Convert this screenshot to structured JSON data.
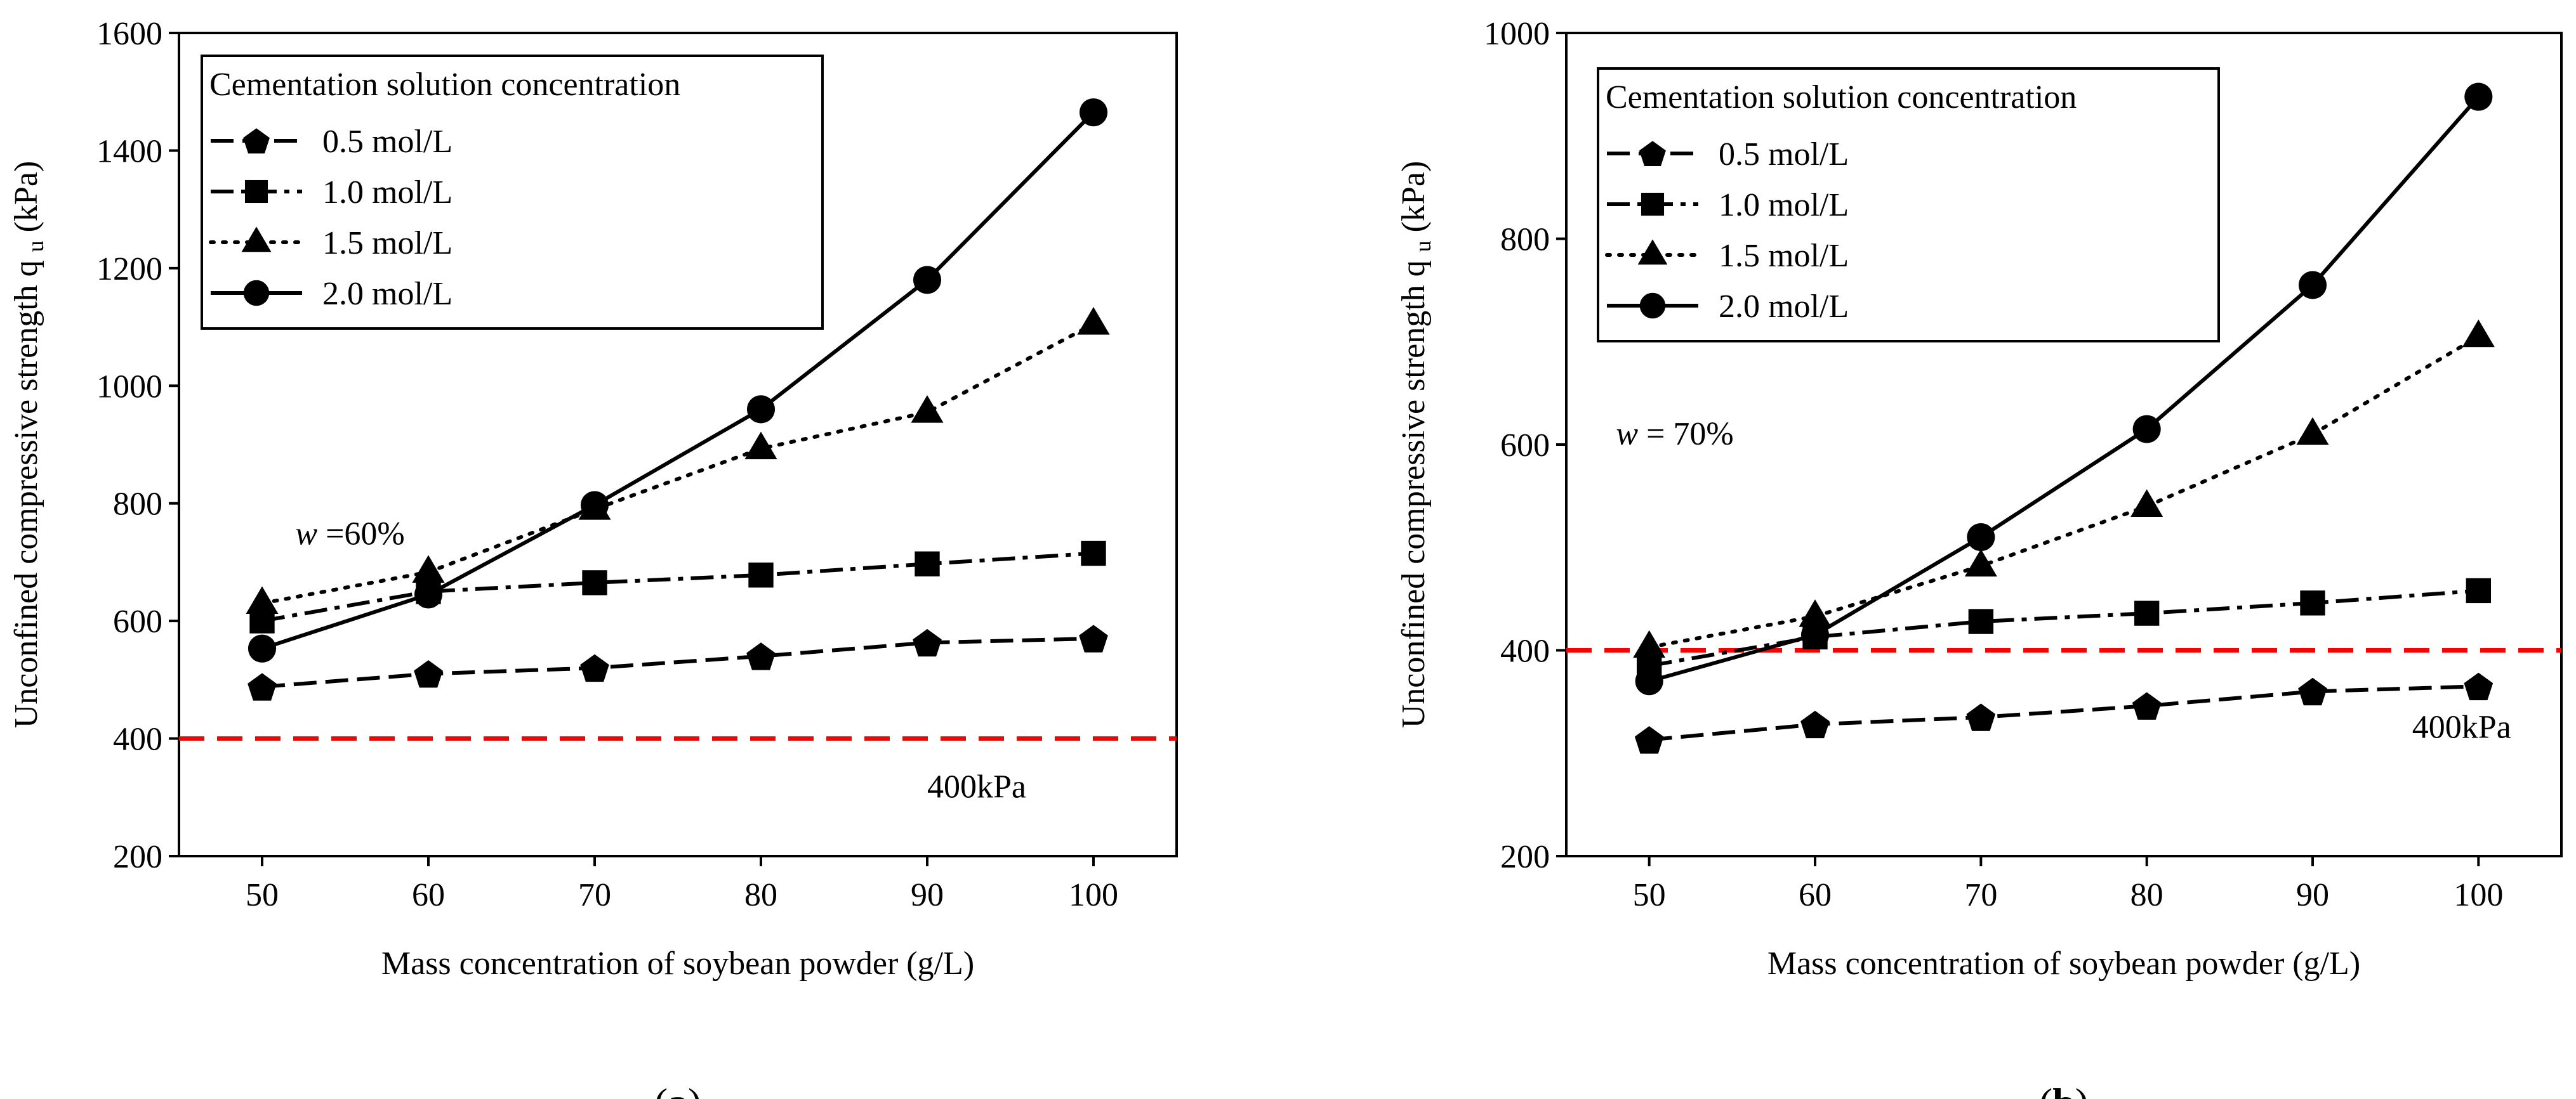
{
  "chart_data": [
    {
      "type": "line",
      "panel_label": "a",
      "xlabel": "Mass concentration of soybean powder (g/L)",
      "ylabel": "Unconfined compressive strength q",
      "ylabel_subscript": "u",
      "ylabel_unit": "(kPa)",
      "xlim": [
        45,
        105
      ],
      "ylim": [
        200,
        1600
      ],
      "xticks": [
        50,
        60,
        70,
        80,
        90,
        100
      ],
      "yticks": [
        200,
        400,
        600,
        800,
        1000,
        1200,
        1400,
        1600
      ],
      "x": [
        50,
        60,
        70,
        80,
        90,
        100
      ],
      "legend_title": "Cementation solution concentration",
      "legend_position": "top-left",
      "annotation": {
        "var": "w",
        "text": " =60%",
        "x": 52,
        "y": 730
      },
      "reference_line": {
        "y": 400,
        "label": "400kPa",
        "color": "#ff0000",
        "label_x": 90,
        "label_y": 300
      },
      "series": [
        {
          "name": "0.5 mol/L",
          "marker": "pentagon",
          "dash": "dash",
          "values": [
            488,
            510,
            520,
            540,
            563,
            570
          ]
        },
        {
          "name": "1.0 mol/L",
          "marker": "square",
          "dash": "dashdot",
          "values": [
            600,
            650,
            665,
            678,
            697,
            715
          ]
        },
        {
          "name": "1.5 mol/L",
          "marker": "triangle",
          "dash": "dot",
          "values": [
            630,
            683,
            790,
            893,
            955,
            1105
          ]
        },
        {
          "name": "2.0 mol/L",
          "marker": "circle",
          "dash": "solid",
          "values": [
            553,
            645,
            797,
            960,
            1180,
            1465
          ]
        }
      ]
    },
    {
      "type": "line",
      "panel_label": "b",
      "xlabel": "Mass concentration of soybean powder (g/L)",
      "ylabel": "Unconfined compressive strength q",
      "ylabel_subscript": "u",
      "ylabel_unit": "(kPa)",
      "xlim": [
        45,
        105
      ],
      "ylim": [
        200,
        1000
      ],
      "xticks": [
        50,
        60,
        70,
        80,
        90,
        100
      ],
      "yticks": [
        200,
        400,
        600,
        800,
        1000
      ],
      "x": [
        50,
        60,
        70,
        80,
        90,
        100
      ],
      "legend_title": "Cementation solution concentration",
      "legend_position": "top-left",
      "annotation": {
        "var": "w",
        "text": " = 70%",
        "x": 48,
        "y": 600
      },
      "reference_line": {
        "y": 400,
        "label": "400kPa",
        "color": "#ff0000",
        "label_x": 96,
        "label_y": 315
      },
      "series": [
        {
          "name": "0.5 mol/L",
          "marker": "pentagon",
          "dash": "dash",
          "values": [
            313,
            328,
            335,
            346,
            360,
            365
          ]
        },
        {
          "name": "1.0 mol/L",
          "marker": "square",
          "dash": "dashdot",
          "values": [
            385,
            413,
            428,
            436,
            446,
            458
          ]
        },
        {
          "name": "1.5 mol/L",
          "marker": "triangle",
          "dash": "dot",
          "values": [
            403,
            433,
            482,
            540,
            610,
            705
          ]
        },
        {
          "name": "2.0 mol/L",
          "marker": "circle",
          "dash": "solid",
          "values": [
            370,
            415,
            510,
            615,
            755,
            938
          ]
        }
      ]
    }
  ]
}
